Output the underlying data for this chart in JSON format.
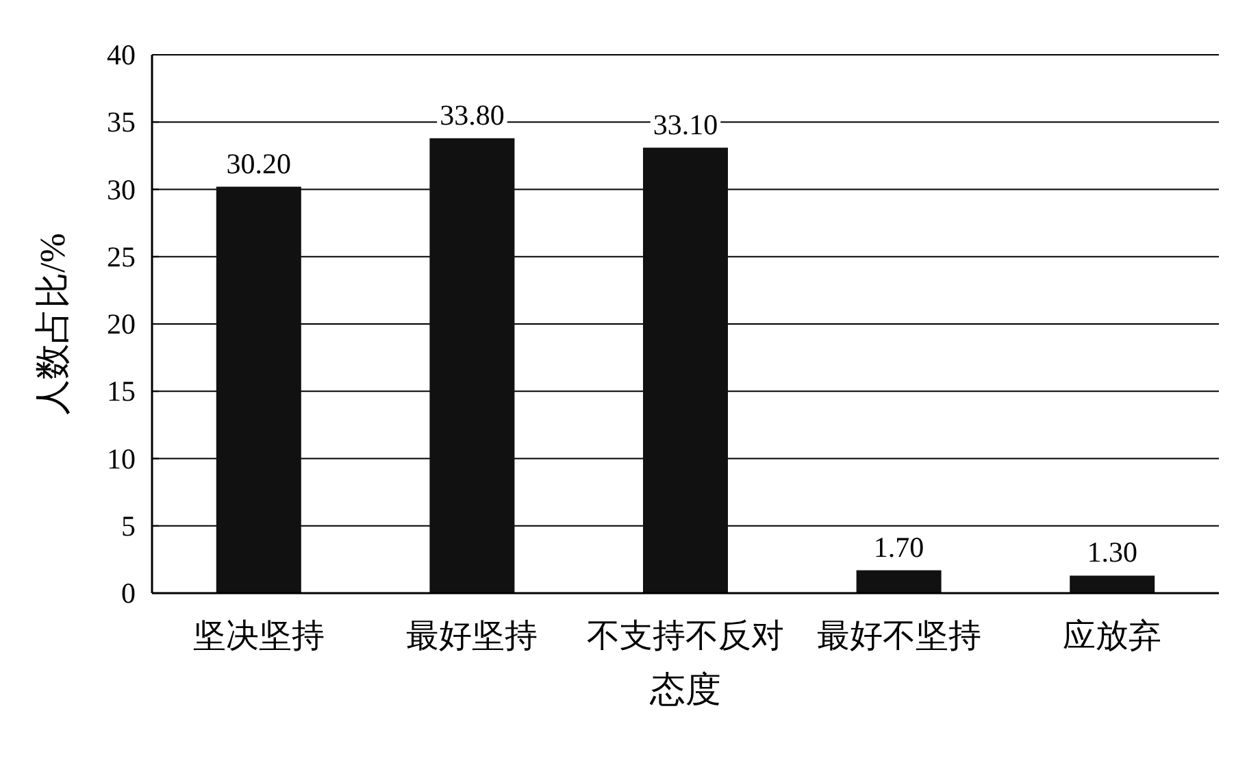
{
  "chart_data": {
    "type": "bar",
    "categories": [
      "坚决坚持",
      "最好坚持",
      "不支持不反对",
      "最好不坚持",
      "应放弃"
    ],
    "values": [
      30.2,
      33.8,
      33.1,
      1.7,
      1.3
    ],
    "value_labels": [
      "30.20",
      "33.80",
      "33.10",
      "1.70",
      "1.30"
    ],
    "color": "#111111",
    "xlabel": "态度",
    "ylabel": "人数占比/%",
    "ylim": [
      0,
      40
    ],
    "yticks": [
      0,
      5,
      10,
      15,
      20,
      25,
      30,
      35,
      40
    ],
    "grid": "y"
  }
}
